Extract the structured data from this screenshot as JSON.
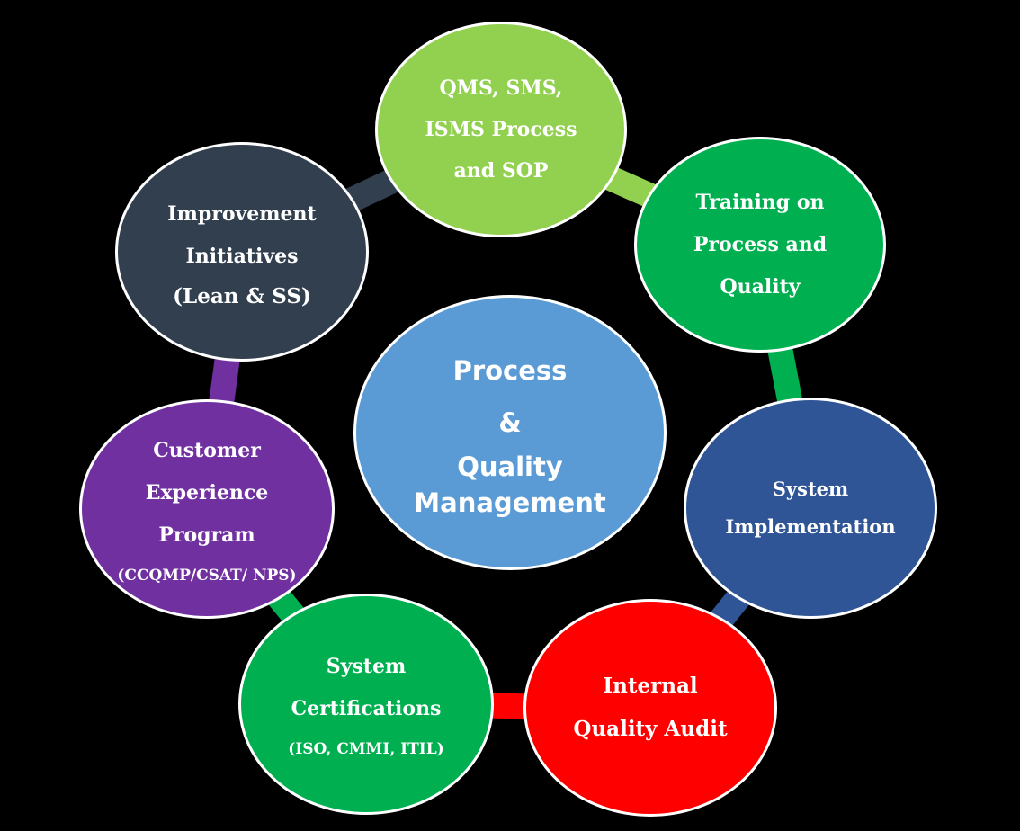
{
  "center": {
    "lines": [
      "Process",
      "&",
      "Quality",
      "Management"
    ],
    "color": "#5b9bd5"
  },
  "nodes": [
    {
      "id": "qms",
      "lines": [
        "QMS, SMS,",
        "ISMS Process",
        "and SOP"
      ],
      "sub": "",
      "color": "#92d050"
    },
    {
      "id": "training",
      "lines": [
        "Training on",
        "Process and",
        "Quality"
      ],
      "sub": "",
      "color": "#00b050"
    },
    {
      "id": "system-impl",
      "lines": [
        "System",
        "Implementation"
      ],
      "sub": "",
      "color": "#2f5597"
    },
    {
      "id": "internal-audit",
      "lines": [
        "Internal",
        "Quality Audit"
      ],
      "sub": "",
      "color": "#ff0000"
    },
    {
      "id": "certifications",
      "lines": [
        "System",
        "Certifications"
      ],
      "sub": "(ISO, CMMI, ITIL)",
      "color": "#00b050"
    },
    {
      "id": "cx",
      "lines": [
        "Customer",
        "Experience",
        "Program"
      ],
      "sub": "(CCQMP/CSAT/ NPS)",
      "color": "#7030a0"
    },
    {
      "id": "improvement",
      "lines": [
        "Improvement",
        "Initiatives"
      ],
      "sub": "(Lean & SS)",
      "color": "#323f4f"
    }
  ],
  "connectors": [
    {
      "from": "qms",
      "to": "training",
      "color": "#92d050"
    },
    {
      "from": "training",
      "to": "system-impl",
      "color": "#00b050"
    },
    {
      "from": "system-impl",
      "to": "internal-audit",
      "color": "#2f5597"
    },
    {
      "from": "internal-audit",
      "to": "certifications",
      "color": "#ff0000"
    },
    {
      "from": "certifications",
      "to": "cx",
      "color": "#00b050"
    },
    {
      "from": "cx",
      "to": "improvement",
      "color": "#7030a0"
    },
    {
      "from": "improvement",
      "to": "qms",
      "color": "#323f4f"
    }
  ]
}
